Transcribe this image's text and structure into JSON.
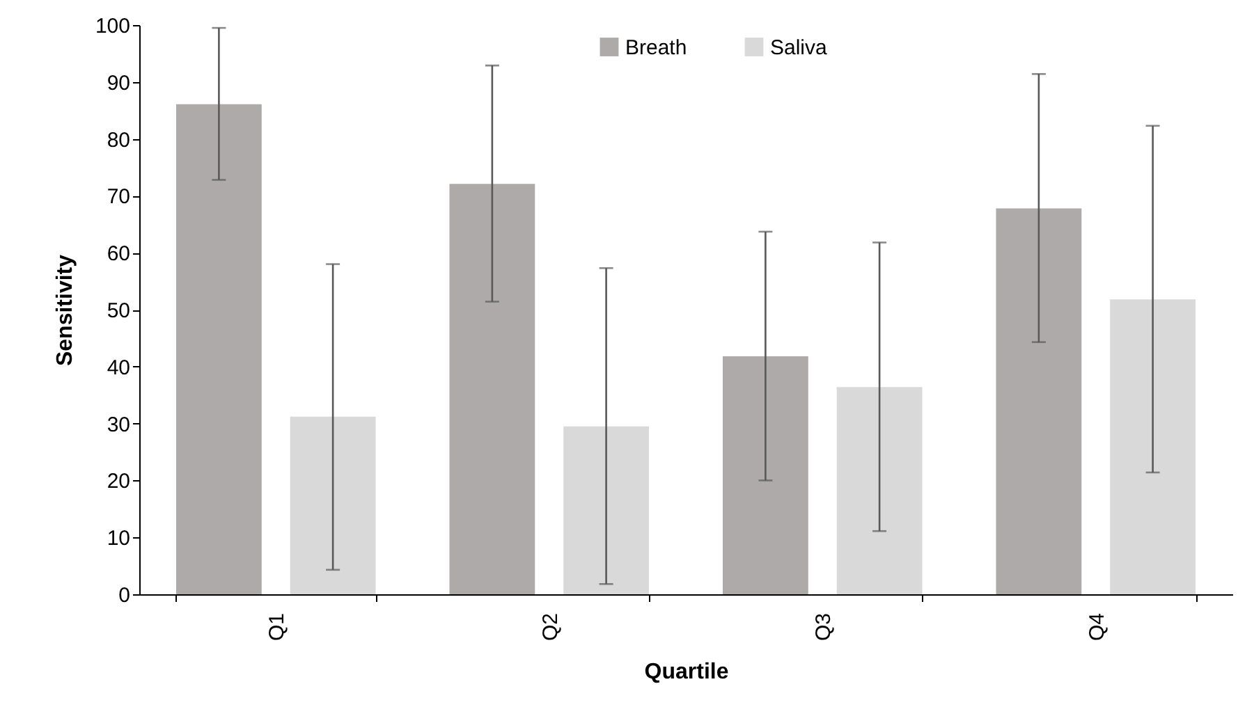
{
  "chart_data": {
    "type": "bar",
    "xlabel": "Quartile",
    "ylabel": "Sensitivity",
    "categories": [
      "Q1",
      "Q2",
      "Q3",
      "Q4"
    ],
    "series": [
      {
        "name": "Breath",
        "color": "#aeaaaa",
        "values": [
          86.1,
          72.1,
          41.8,
          67.8
        ],
        "errors": [
          [
            72.8,
            99.5
          ],
          [
            51.4,
            92.9
          ],
          [
            20,
            63.7
          ],
          [
            44.3,
            91.4
          ]
        ]
      },
      {
        "name": "Saliva",
        "color": "#d9d9d9",
        "values": [
          31.2,
          29.5,
          36.4,
          51.8
        ],
        "errors": [
          [
            4.3,
            58
          ],
          [
            1.8,
            57.3
          ],
          [
            11.1,
            61.8
          ],
          [
            21.4,
            82.3
          ]
        ]
      }
    ],
    "ylim": [
      0,
      100
    ],
    "yticks": [
      0,
      10,
      20,
      30,
      40,
      50,
      60,
      70,
      80,
      90,
      100
    ],
    "grid": false,
    "legend": "top"
  }
}
